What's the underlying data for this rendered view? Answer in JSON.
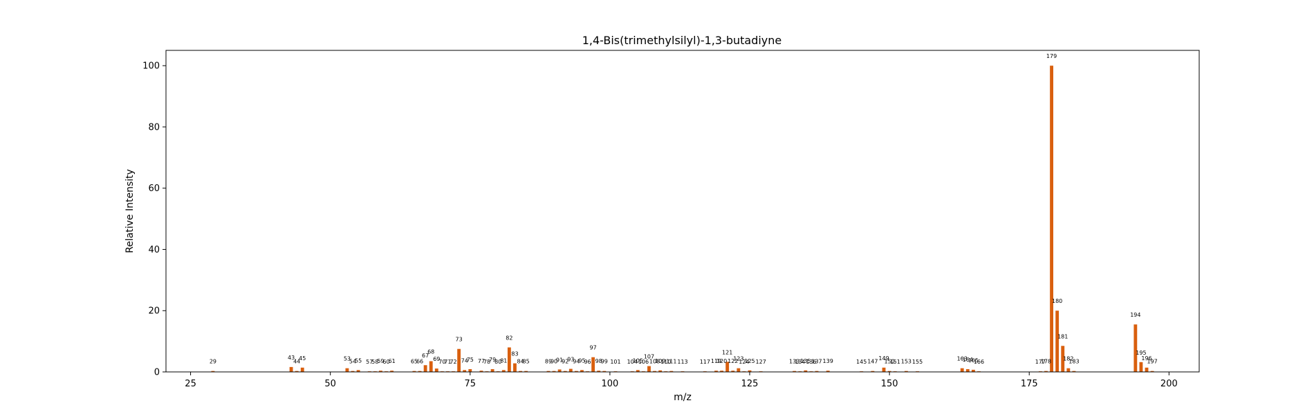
{
  "chart_data": {
    "type": "bar",
    "title": "1,4-Bis(trimethylsilyl)-1,3-butadiyne",
    "xlabel": "m/z",
    "ylabel": "Relative Intensity",
    "xlim": [
      20.6,
      205.4
    ],
    "ylim": [
      0,
      105
    ],
    "xticks": [
      25,
      50,
      75,
      100,
      125,
      150,
      175,
      200
    ],
    "yticks": [
      0,
      20,
      40,
      60,
      80,
      100
    ],
    "grid": false,
    "bar_color": "#d95f0e",
    "peaks": [
      {
        "mz": 29,
        "intensity": 0.3
      },
      {
        "mz": 43,
        "intensity": 1.6
      },
      {
        "mz": 44,
        "intensity": 0.3
      },
      {
        "mz": 45,
        "intensity": 1.4
      },
      {
        "mz": 53,
        "intensity": 1.2
      },
      {
        "mz": 54,
        "intensity": 0.3
      },
      {
        "mz": 55,
        "intensity": 0.6
      },
      {
        "mz": 57,
        "intensity": 0.2
      },
      {
        "mz": 58,
        "intensity": 0.2
      },
      {
        "mz": 59,
        "intensity": 0.4
      },
      {
        "mz": 60,
        "intensity": 0.2
      },
      {
        "mz": 61,
        "intensity": 0.4
      },
      {
        "mz": 65,
        "intensity": 0.3
      },
      {
        "mz": 66,
        "intensity": 0.3
      },
      {
        "mz": 67,
        "intensity": 2.2
      },
      {
        "mz": 68,
        "intensity": 3.5
      },
      {
        "mz": 69,
        "intensity": 1.1
      },
      {
        "mz": 70,
        "intensity": 0.2
      },
      {
        "mz": 71,
        "intensity": 0.2
      },
      {
        "mz": 72,
        "intensity": 0.2
      },
      {
        "mz": 73,
        "intensity": 7.5
      },
      {
        "mz": 74,
        "intensity": 0.6
      },
      {
        "mz": 75,
        "intensity": 0.9
      },
      {
        "mz": 77,
        "intensity": 0.4
      },
      {
        "mz": 78,
        "intensity": 0.2
      },
      {
        "mz": 79,
        "intensity": 0.9
      },
      {
        "mz": 80,
        "intensity": 0.2
      },
      {
        "mz": 81,
        "intensity": 0.6
      },
      {
        "mz": 82,
        "intensity": 8.0
      },
      {
        "mz": 83,
        "intensity": 2.8
      },
      {
        "mz": 84,
        "intensity": 0.3
      },
      {
        "mz": 85,
        "intensity": 0.3
      },
      {
        "mz": 89,
        "intensity": 0.3
      },
      {
        "mz": 90,
        "intensity": 0.3
      },
      {
        "mz": 91,
        "intensity": 0.8
      },
      {
        "mz": 92,
        "intensity": 0.3
      },
      {
        "mz": 93,
        "intensity": 1.0
      },
      {
        "mz": 94,
        "intensity": 0.3
      },
      {
        "mz": 95,
        "intensity": 0.6
      },
      {
        "mz": 96,
        "intensity": 0.2
      },
      {
        "mz": 97,
        "intensity": 4.8
      },
      {
        "mz": 98,
        "intensity": 0.4
      },
      {
        "mz": 99,
        "intensity": 0.3
      },
      {
        "mz": 101,
        "intensity": 0.2
      },
      {
        "mz": 104,
        "intensity": 0.2
      },
      {
        "mz": 105,
        "intensity": 0.6
      },
      {
        "mz": 106,
        "intensity": 0.2
      },
      {
        "mz": 107,
        "intensity": 1.9
      },
      {
        "mz": 108,
        "intensity": 0.3
      },
      {
        "mz": 109,
        "intensity": 0.5
      },
      {
        "mz": 110,
        "intensity": 0.2
      },
      {
        "mz": 111,
        "intensity": 0.3
      },
      {
        "mz": 113,
        "intensity": 0.2
      },
      {
        "mz": 117,
        "intensity": 0.2
      },
      {
        "mz": 119,
        "intensity": 0.4
      },
      {
        "mz": 120,
        "intensity": 0.4
      },
      {
        "mz": 121,
        "intensity": 3.3
      },
      {
        "mz": 122,
        "intensity": 0.4
      },
      {
        "mz": 123,
        "intensity": 1.2
      },
      {
        "mz": 124,
        "intensity": 0.2
      },
      {
        "mz": 125,
        "intensity": 0.5
      },
      {
        "mz": 127,
        "intensity": 0.2
      },
      {
        "mz": 133,
        "intensity": 0.3
      },
      {
        "mz": 134,
        "intensity": 0.2
      },
      {
        "mz": 135,
        "intensity": 0.5
      },
      {
        "mz": 136,
        "intensity": 0.2
      },
      {
        "mz": 137,
        "intensity": 0.3
      },
      {
        "mz": 139,
        "intensity": 0.4
      },
      {
        "mz": 145,
        "intensity": 0.2
      },
      {
        "mz": 147,
        "intensity": 0.3
      },
      {
        "mz": 149,
        "intensity": 1.4
      },
      {
        "mz": 150,
        "intensity": 0.3
      },
      {
        "mz": 151,
        "intensity": 0.2
      },
      {
        "mz": 153,
        "intensity": 0.3
      },
      {
        "mz": 155,
        "intensity": 0.2
      },
      {
        "mz": 163,
        "intensity": 1.2
      },
      {
        "mz": 164,
        "intensity": 0.9
      },
      {
        "mz": 165,
        "intensity": 0.7
      },
      {
        "mz": 166,
        "intensity": 0.2
      },
      {
        "mz": 177,
        "intensity": 0.2
      },
      {
        "mz": 178,
        "intensity": 0.3
      },
      {
        "mz": 179,
        "intensity": 100
      },
      {
        "mz": 180,
        "intensity": 20
      },
      {
        "mz": 181,
        "intensity": 8.5
      },
      {
        "mz": 182,
        "intensity": 1.2
      },
      {
        "mz": 183,
        "intensity": 0.3
      },
      {
        "mz": 194,
        "intensity": 15.5
      },
      {
        "mz": 195,
        "intensity": 3.2
      },
      {
        "mz": 196,
        "intensity": 1.4
      },
      {
        "mz": 197,
        "intensity": 0.3
      }
    ]
  }
}
